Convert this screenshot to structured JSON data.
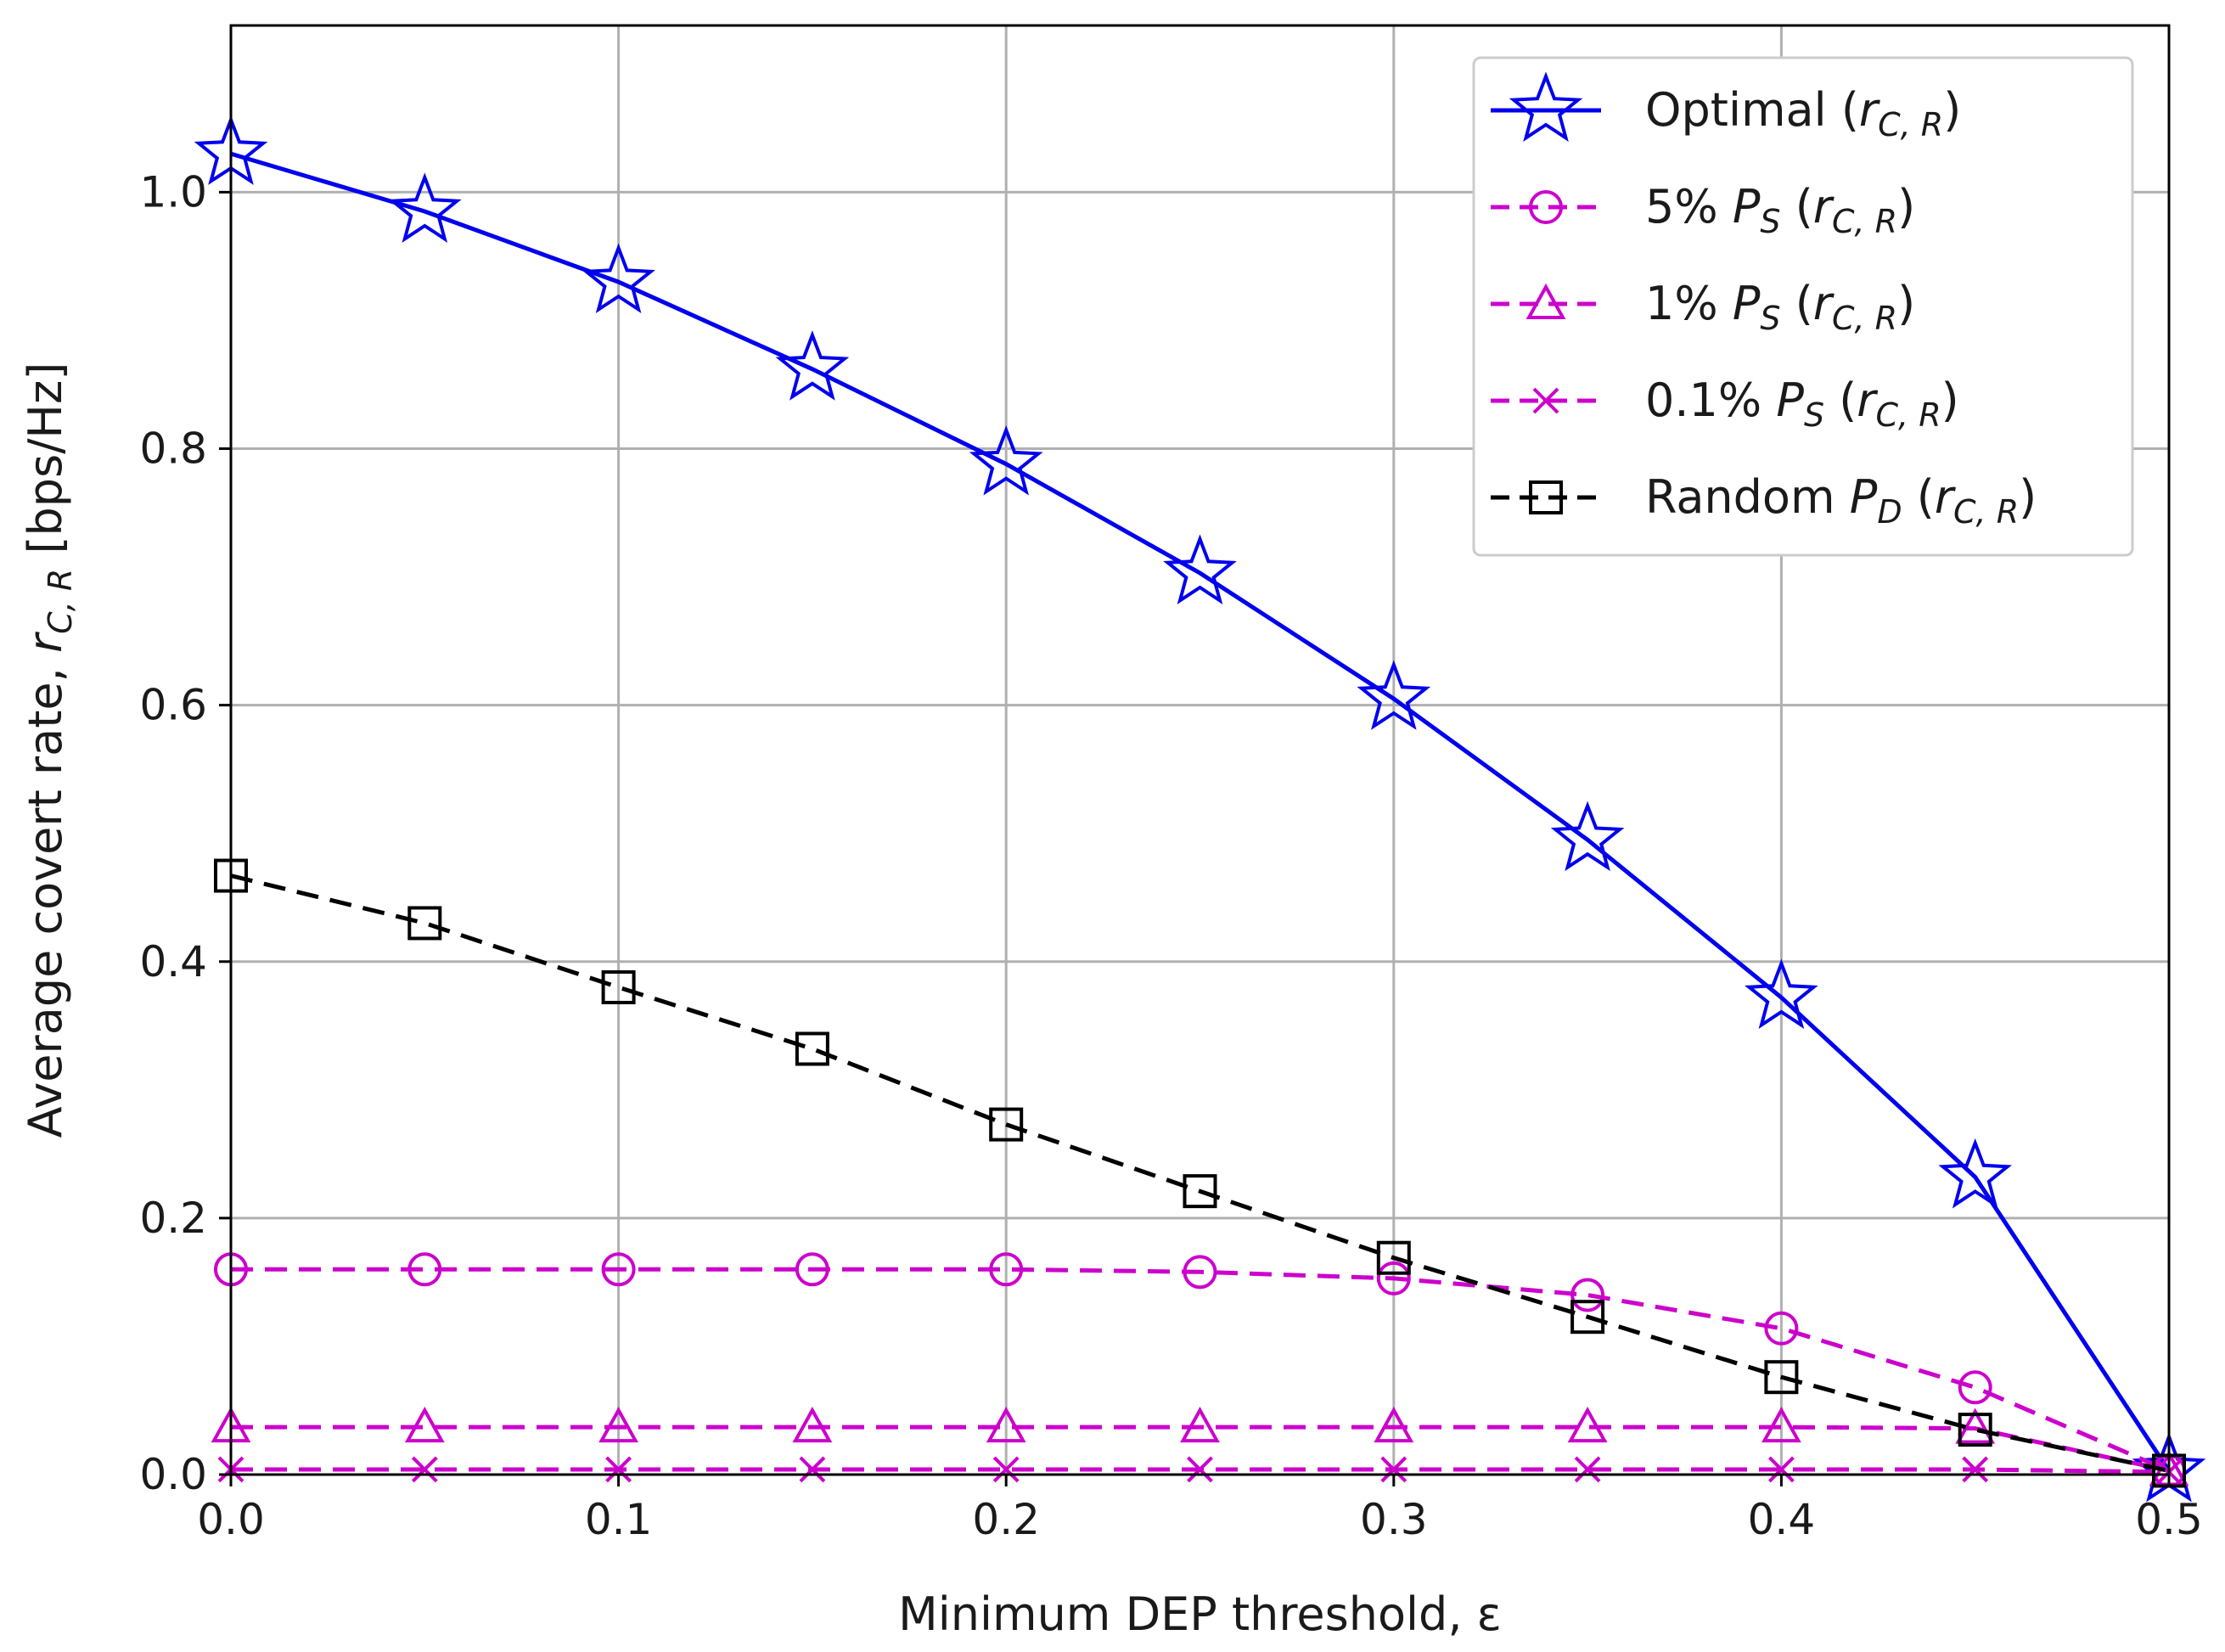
{
  "chart_data": {
    "type": "line",
    "xlabel": "Minimum DEP threshold, ε",
    "ylabel": "Average covert rate, r_{C,R} [bps/Hz]",
    "ylabel_parts": {
      "main": "Average covert rate, ",
      "var": "r",
      "sub": "C, R",
      "unit": " [bps/Hz]"
    },
    "xlim": [
      0.0,
      0.5
    ],
    "ylim": [
      0.0,
      1.13
    ],
    "x_ticks": [
      0.0,
      0.1,
      0.2,
      0.3,
      0.4,
      0.5
    ],
    "x_tick_labels": [
      "0.0",
      "0.1",
      "0.2",
      "0.3",
      "0.4",
      "0.5"
    ],
    "y_ticks": [
      0.0,
      0.2,
      0.4,
      0.6,
      0.8,
      1.0
    ],
    "y_tick_labels": [
      "0.0",
      "0.2",
      "0.4",
      "0.6",
      "0.8",
      "1.0"
    ],
    "grid": true,
    "legend_position": "top-right",
    "x": [
      0.0,
      0.05,
      0.1,
      0.15,
      0.2,
      0.25,
      0.3,
      0.35,
      0.4,
      0.45,
      0.5
    ],
    "series": [
      {
        "name": "Optimal (r_{C,R})",
        "label_prefix": "Optimal (",
        "label_var": "r",
        "label_sub": "C, R",
        "label_suffix": ")",
        "color": "#0000ee",
        "dash": "solid",
        "marker": "star",
        "values": [
          1.03,
          0.985,
          0.93,
          0.862,
          0.788,
          0.703,
          0.605,
          0.495,
          0.372,
          0.232,
          0.003
        ]
      },
      {
        "name": "5% P_S (r_{C,R})",
        "label_prefix": "5% ",
        "label_P": "P",
        "label_Psub": "S",
        "label_var": "r",
        "label_sub": "C, R",
        "color": "#cc00cc",
        "dash": "dashed",
        "marker": "circle",
        "values": [
          0.16,
          0.16,
          0.16,
          0.16,
          0.16,
          0.158,
          0.153,
          0.14,
          0.114,
          0.068,
          0.003
        ]
      },
      {
        "name": "1% P_S (r_{C,R})",
        "label_prefix": "1% ",
        "label_P": "P",
        "label_Psub": "S",
        "label_var": "r",
        "label_sub": "C, R",
        "color": "#cc00cc",
        "dash": "dashed",
        "marker": "triangle",
        "values": [
          0.037,
          0.037,
          0.037,
          0.037,
          0.037,
          0.037,
          0.037,
          0.037,
          0.037,
          0.036,
          0.003
        ]
      },
      {
        "name": "0.1% P_S (r_{C,R})",
        "label_prefix": "0.1% ",
        "label_P": "P",
        "label_Psub": "S",
        "label_var": "r",
        "label_sub": "C, R",
        "color": "#cc00cc",
        "dash": "dashed",
        "marker": "x",
        "values": [
          0.004,
          0.004,
          0.004,
          0.004,
          0.004,
          0.004,
          0.004,
          0.004,
          0.004,
          0.004,
          0.002
        ]
      },
      {
        "name": "Random P_D (r_{C,R})",
        "label_prefix": "Random ",
        "label_P": "P",
        "label_Psub": "D",
        "label_var": "r",
        "label_sub": "C, R",
        "color": "#000000",
        "dash": "dashed",
        "marker": "square",
        "values": [
          0.467,
          0.43,
          0.38,
          0.332,
          0.273,
          0.221,
          0.169,
          0.123,
          0.076,
          0.035,
          0.003
        ]
      }
    ]
  }
}
